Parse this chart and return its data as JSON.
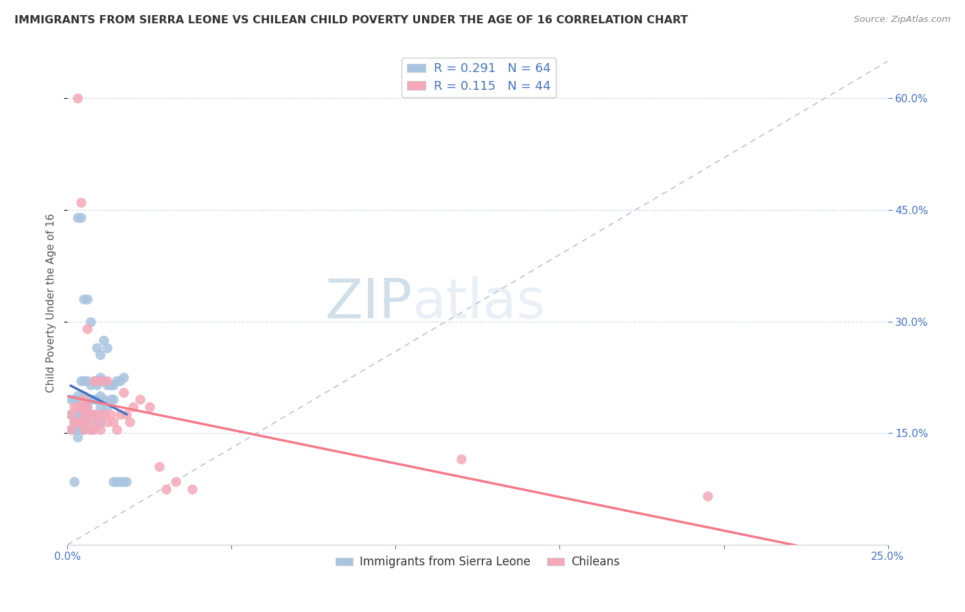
{
  "title": "IMMIGRANTS FROM SIERRA LEONE VS CHILEAN CHILD POVERTY UNDER THE AGE OF 16 CORRELATION CHART",
  "source": "Source: ZipAtlas.com",
  "ylabel": "Child Poverty Under the Age of 16",
  "xlim": [
    0.0,
    0.25
  ],
  "ylim": [
    0.0,
    0.65
  ],
  "xticks": [
    0.0,
    0.05,
    0.1,
    0.15,
    0.2,
    0.25
  ],
  "yticks": [
    0.15,
    0.3,
    0.45,
    0.6
  ],
  "xtick_labels_show": [
    "0.0%",
    "25.0%"
  ],
  "xtick_labels_pos": [
    0.0,
    0.25
  ],
  "ytick_labels": [
    "15.0%",
    "30.0%",
    "45.0%",
    "60.0%"
  ],
  "blue_color": "#a8c4e0",
  "pink_color": "#f4a8b8",
  "blue_line_color": "#4472c4",
  "pink_line_color": "#f47a8a",
  "dashed_line_color": "#b8c4d4",
  "blue_r": 0.291,
  "blue_n": 64,
  "pink_r": 0.115,
  "pink_n": 44,
  "watermark_zip": "ZIP",
  "watermark_atlas": "atlas",
  "blue_scatter_x": [
    0.001,
    0.001,
    0.001,
    0.002,
    0.002,
    0.002,
    0.002,
    0.003,
    0.003,
    0.003,
    0.003,
    0.003,
    0.004,
    0.004,
    0.004,
    0.004,
    0.004,
    0.005,
    0.005,
    0.005,
    0.005,
    0.005,
    0.006,
    0.006,
    0.006,
    0.007,
    0.007,
    0.007,
    0.007,
    0.008,
    0.008,
    0.008,
    0.009,
    0.009,
    0.009,
    0.01,
    0.01,
    0.01,
    0.01,
    0.011,
    0.011,
    0.012,
    0.012,
    0.013,
    0.013,
    0.014,
    0.014,
    0.015,
    0.016,
    0.017,
    0.003,
    0.004,
    0.005,
    0.006,
    0.007,
    0.009,
    0.01,
    0.011,
    0.012,
    0.014,
    0.015,
    0.016,
    0.017,
    0.018
  ],
  "blue_scatter_y": [
    0.195,
    0.175,
    0.155,
    0.195,
    0.165,
    0.155,
    0.085,
    0.2,
    0.175,
    0.165,
    0.155,
    0.145,
    0.22,
    0.195,
    0.175,
    0.165,
    0.155,
    0.22,
    0.2,
    0.185,
    0.175,
    0.155,
    0.22,
    0.185,
    0.165,
    0.215,
    0.195,
    0.175,
    0.155,
    0.22,
    0.195,
    0.175,
    0.215,
    0.195,
    0.165,
    0.225,
    0.2,
    0.185,
    0.165,
    0.22,
    0.195,
    0.215,
    0.185,
    0.215,
    0.195,
    0.215,
    0.195,
    0.22,
    0.22,
    0.225,
    0.44,
    0.44,
    0.33,
    0.33,
    0.3,
    0.265,
    0.255,
    0.275,
    0.265,
    0.085,
    0.085,
    0.085,
    0.085,
    0.085
  ],
  "pink_scatter_x": [
    0.001,
    0.001,
    0.002,
    0.002,
    0.003,
    0.003,
    0.004,
    0.004,
    0.005,
    0.005,
    0.005,
    0.006,
    0.006,
    0.007,
    0.007,
    0.008,
    0.008,
    0.009,
    0.01,
    0.01,
    0.011,
    0.012,
    0.013,
    0.014,
    0.015,
    0.016,
    0.017,
    0.018,
    0.019,
    0.02,
    0.022,
    0.025,
    0.028,
    0.03,
    0.033,
    0.038,
    0.12,
    0.195,
    0.003,
    0.004,
    0.006,
    0.008,
    0.01,
    0.012
  ],
  "pink_scatter_y": [
    0.175,
    0.155,
    0.185,
    0.165,
    0.185,
    0.165,
    0.185,
    0.165,
    0.195,
    0.175,
    0.155,
    0.185,
    0.165,
    0.175,
    0.155,
    0.175,
    0.155,
    0.165,
    0.175,
    0.155,
    0.175,
    0.165,
    0.175,
    0.165,
    0.155,
    0.175,
    0.205,
    0.175,
    0.165,
    0.185,
    0.195,
    0.185,
    0.105,
    0.075,
    0.085,
    0.075,
    0.115,
    0.065,
    0.6,
    0.46,
    0.29,
    0.22,
    0.22,
    0.22
  ]
}
